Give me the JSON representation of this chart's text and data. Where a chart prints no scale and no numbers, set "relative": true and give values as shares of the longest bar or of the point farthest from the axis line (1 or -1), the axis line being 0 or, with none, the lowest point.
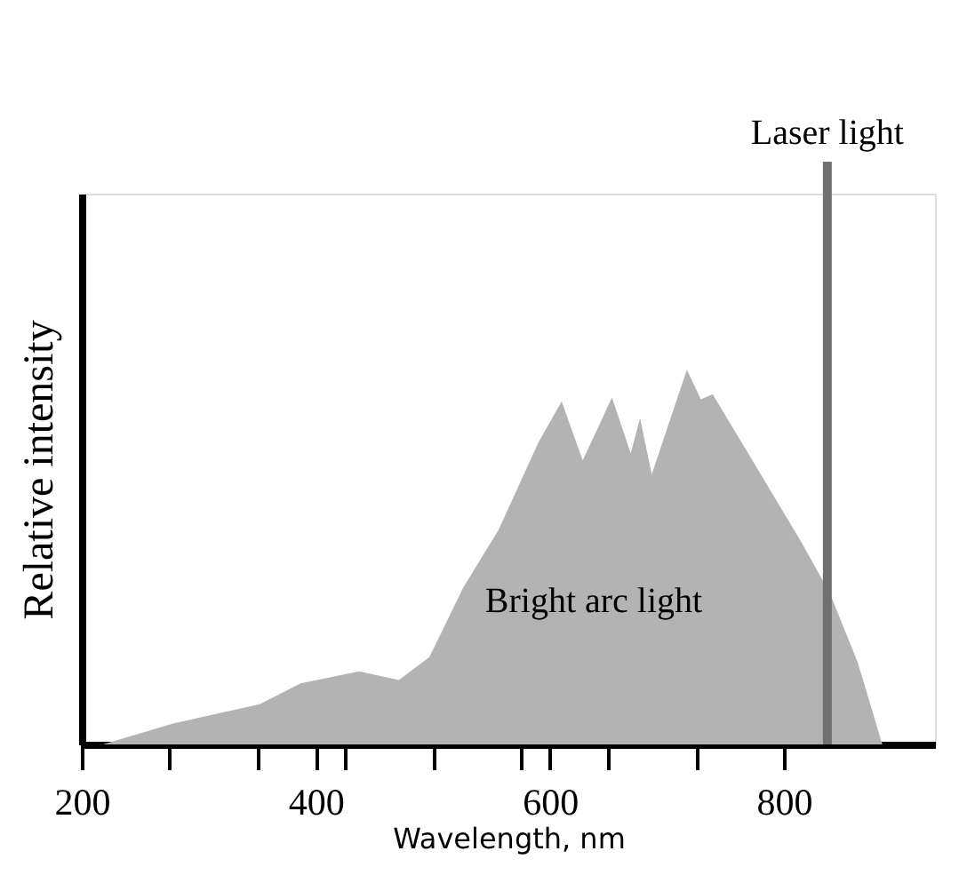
{
  "chart_data": {
    "type": "area",
    "relative": true,
    "xlabel": "Wavelength, nm",
    "ylabel": "Relative intensity",
    "x": [
      218,
      278,
      352,
      387,
      437,
      471,
      497,
      526,
      556,
      590,
      610,
      628,
      653,
      669,
      677,
      687,
      717,
      729,
      739,
      773,
      814,
      839,
      863,
      884
    ],
    "series": [
      {
        "color": "#b3b3b3",
        "values": [
          0,
          0.056,
          0.107,
          0.163,
          0.195,
          0.172,
          0.233,
          0.419,
          0.572,
          0.805,
          0.916,
          0.758,
          0.926,
          0.777,
          0.87,
          0.721,
          1,
          0.921,
          0.935,
          0.758,
          0.544,
          0.405,
          0.219,
          0
        ]
      }
    ],
    "xlim": [
      200,
      929
    ],
    "xticks": [
      200,
      {
        "value": 275,
        "label": null
      },
      {
        "value": 350,
        "label": null
      },
      400,
      {
        "value": 425,
        "label": null
      },
      {
        "value": 500,
        "label": null
      },
      {
        "value": 575,
        "label": null
      },
      600,
      {
        "value": 650,
        "label": null
      },
      {
        "value": 725,
        "label": null
      },
      800
    ],
    "ref_lines": [
      {
        "axis": "x",
        "value": 837,
        "label": "Laser light",
        "color": "#707070"
      }
    ],
    "annotations": [
      "Bright arc light"
    ],
    "grid": false
  }
}
